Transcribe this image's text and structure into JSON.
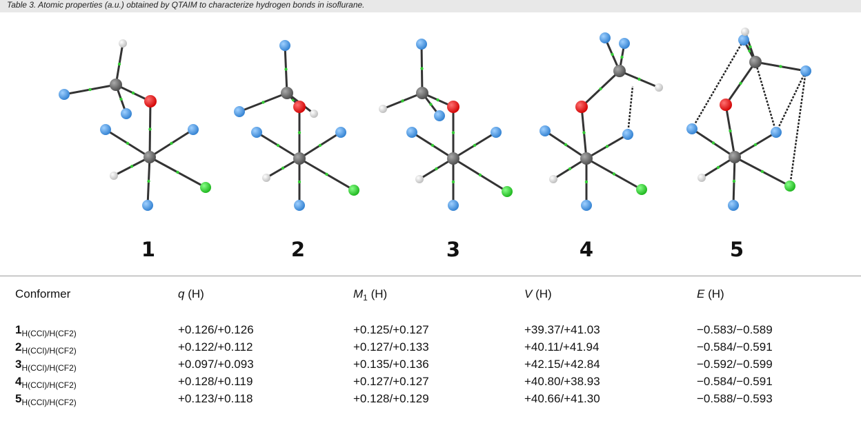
{
  "caption": "Table 3. Atomic properties (a.u.) obtained by QTAIM to characterize hydrogen bonds in isoflurane.",
  "figure": {
    "labels": [
      "1",
      "2",
      "3",
      "4",
      "5"
    ]
  },
  "table": {
    "header": [
      {
        "text": "Conformer"
      },
      {
        "italic": "q",
        "text": " (H)"
      },
      {
        "italic": "M",
        "sub": "1",
        "text": " (H)"
      },
      {
        "italic": "V",
        "text": " (H)"
      },
      {
        "italic": "E",
        "text": " (H)"
      }
    ],
    "rows": [
      {
        "label": "1",
        "sub": "H(CCl)/H(CF2)",
        "cells": [
          "+0.126/+0.126",
          "+0.125/+0.127",
          "+39.37/+41.03",
          "−0.583/−0.589"
        ]
      },
      {
        "label": "2",
        "sub": "H(CCl)/H(CF2)",
        "cells": [
          "+0.122/+0.112",
          "+0.127/+0.133",
          "+40.11/+41.94",
          "−0.584/−0.591"
        ]
      },
      {
        "label": "3",
        "sub": "H(CCl)/H(CF2)",
        "cells": [
          "+0.097/+0.093",
          "+0.135/+0.136",
          "+42.15/+42.84",
          "−0.592/−0.599"
        ]
      },
      {
        "label": "4",
        "sub": "H(CCl)/H(CF2)",
        "cells": [
          "+0.128/+0.119",
          "+0.127/+0.127",
          "+40.80/+38.93",
          "−0.584/−0.591"
        ]
      },
      {
        "label": "5",
        "sub": "H(CCl)/H(CF2)",
        "cells": [
          "+0.123/+0.118",
          "+0.128/+0.129",
          "+40.66/+41.30",
          "−0.588/−0.593"
        ]
      }
    ]
  }
}
